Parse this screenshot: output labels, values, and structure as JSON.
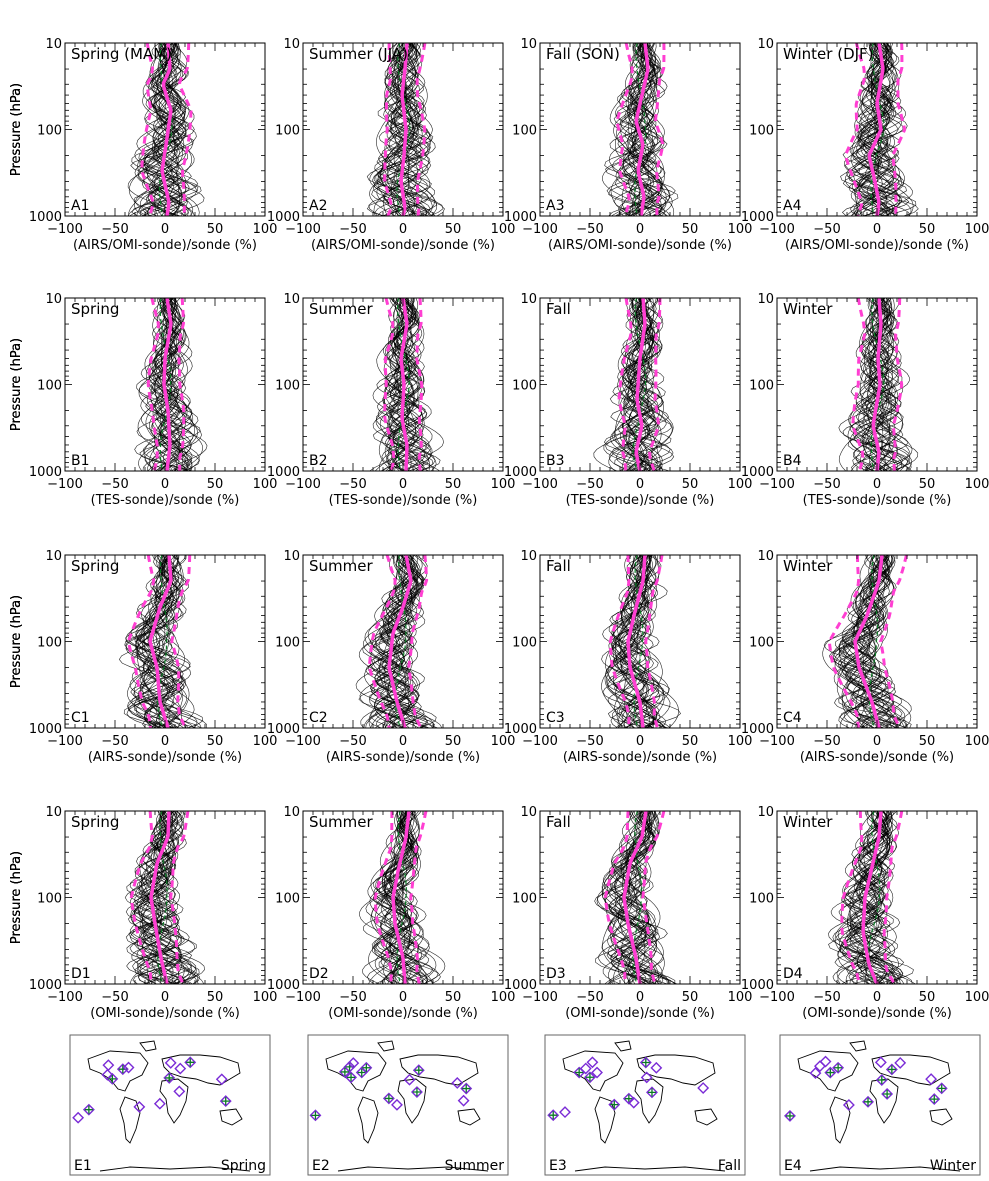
{
  "chart_data": {
    "type": "line",
    "ylabel": "Pressure (hPa)",
    "y_scale": "log",
    "y_reversed": true,
    "ylim": [
      1000,
      10
    ],
    "y_ticks": [
      "10",
      "100",
      "1000"
    ],
    "xlim": [
      -100,
      100
    ],
    "x_ticks": [
      "−100",
      "−50",
      "0",
      "50",
      "100"
    ],
    "line_colors": {
      "profiles": "#000000",
      "mean": "#ff3fd2",
      "stddev": "#ff3fd2",
      "reference": "#0a7a24"
    },
    "rows": [
      {
        "xlabel": "(AIRS/OMI-sonde)/sonde (%)",
        "panels": [
          {
            "label": "A1",
            "title": "Spring (MAM)",
            "mean": [
              [
                10,
                3
              ],
              [
                20,
                5
              ],
              [
                30,
                -2
              ],
              [
                60,
                6
              ],
              [
                150,
                1
              ],
              [
                300,
                -3
              ],
              [
                700,
                4
              ],
              [
                1000,
                2
              ]
            ],
            "spread": 22
          },
          {
            "label": "A2",
            "title": "Summer (JJA)",
            "mean": [
              [
                10,
                4
              ],
              [
                20,
                2
              ],
              [
                40,
                -1
              ],
              [
                100,
                3
              ],
              [
                200,
                1
              ],
              [
                400,
                -2
              ],
              [
                800,
                2
              ],
              [
                1000,
                0
              ]
            ],
            "spread": 19
          },
          {
            "label": "A3",
            "title": "Fall (SON)",
            "mean": [
              [
                10,
                5
              ],
              [
                20,
                8
              ],
              [
                40,
                2
              ],
              [
                80,
                -4
              ],
              [
                150,
                3
              ],
              [
                300,
                -2
              ],
              [
                600,
                4
              ],
              [
                1000,
                1
              ]
            ],
            "spread": 20
          },
          {
            "label": "A4",
            "title": "Winter (DJF)",
            "mean": [
              [
                10,
                2
              ],
              [
                20,
                6
              ],
              [
                50,
                0
              ],
              [
                100,
                4
              ],
              [
                200,
                -8
              ],
              [
                400,
                -2
              ],
              [
                700,
                2
              ],
              [
                1000,
                0
              ]
            ],
            "spread": 24
          }
        ]
      },
      {
        "xlabel": "(TES-sonde)/sonde (%)",
        "panels": [
          {
            "label": "B1",
            "title": "Spring",
            "mean": [
              [
                10,
                2
              ],
              [
                20,
                6
              ],
              [
                50,
                0
              ],
              [
                100,
                -1
              ],
              [
                200,
                3
              ],
              [
                500,
                5
              ],
              [
                1000,
                2
              ]
            ],
            "spread": 16
          },
          {
            "label": "B2",
            "title": "Summer",
            "mean": [
              [
                10,
                0
              ],
              [
                20,
                4
              ],
              [
                50,
                -2
              ],
              [
                100,
                1
              ],
              [
                250,
                -1
              ],
              [
                500,
                4
              ],
              [
                1000,
                3
              ]
            ],
            "spread": 18
          },
          {
            "label": "B3",
            "title": "Fall",
            "mean": [
              [
                10,
                3
              ],
              [
                20,
                5
              ],
              [
                50,
                0
              ],
              [
                150,
                -3
              ],
              [
                300,
                2
              ],
              [
                600,
                -4
              ],
              [
                1000,
                0
              ]
            ],
            "spread": 18
          },
          {
            "label": "B4",
            "title": "Winter",
            "mean": [
              [
                10,
                2
              ],
              [
                20,
                4
              ],
              [
                50,
                1
              ],
              [
                100,
                3
              ],
              [
                300,
                -4
              ],
              [
                600,
                2
              ],
              [
                1000,
                0
              ]
            ],
            "spread": 22
          }
        ]
      },
      {
        "xlabel": "(AIRS-sonde)/sonde (%)",
        "panels": [
          {
            "label": "C1",
            "title": "Spring",
            "mean": [
              [
                10,
                4
              ],
              [
                20,
                6
              ],
              [
                40,
                -5
              ],
              [
                100,
                -15
              ],
              [
                200,
                -8
              ],
              [
                500,
                -5
              ],
              [
                1000,
                3
              ]
            ],
            "spread": 22
          },
          {
            "label": "C2",
            "title": "Summer",
            "mean": [
              [
                10,
                3
              ],
              [
                20,
                8
              ],
              [
                40,
                0
              ],
              [
                80,
                -10
              ],
              [
                200,
                -14
              ],
              [
                500,
                -6
              ],
              [
                1000,
                2
              ]
            ],
            "spread": 20
          },
          {
            "label": "C3",
            "title": "Fall",
            "mean": [
              [
                10,
                5
              ],
              [
                20,
                3
              ],
              [
                50,
                -6
              ],
              [
                100,
                -12
              ],
              [
                200,
                -10
              ],
              [
                500,
                0
              ],
              [
                1000,
                3
              ]
            ],
            "spread": 18
          },
          {
            "label": "C4",
            "title": "Winter",
            "mean": [
              [
                10,
                5
              ],
              [
                20,
                2
              ],
              [
                50,
                -10
              ],
              [
                100,
                -22
              ],
              [
                200,
                -18
              ],
              [
                500,
                -5
              ],
              [
                1000,
                2
              ]
            ],
            "spread": 26
          }
        ]
      },
      {
        "xlabel": "(OMI-sonde)/sonde (%)",
        "panels": [
          {
            "label": "D1",
            "title": "Spring",
            "mean": [
              [
                10,
                4
              ],
              [
                20,
                3
              ],
              [
                40,
                -8
              ],
              [
                100,
                -14
              ],
              [
                200,
                -10
              ],
              [
                500,
                -4
              ],
              [
                1000,
                2
              ]
            ],
            "spread": 20
          },
          {
            "label": "D2",
            "title": "Summer",
            "mean": [
              [
                10,
                6
              ],
              [
                20,
                3
              ],
              [
                50,
                -5
              ],
              [
                100,
                -10
              ],
              [
                200,
                -8
              ],
              [
                500,
                0
              ],
              [
                1000,
                2
              ]
            ],
            "spread": 18
          },
          {
            "label": "D3",
            "title": "Fall",
            "mean": [
              [
                10,
                6
              ],
              [
                20,
                2
              ],
              [
                40,
                -10
              ],
              [
                100,
                -16
              ],
              [
                200,
                -12
              ],
              [
                500,
                -4
              ],
              [
                1000,
                0
              ]
            ],
            "spread": 19
          },
          {
            "label": "D4",
            "title": "Winter",
            "mean": [
              [
                10,
                4
              ],
              [
                20,
                2
              ],
              [
                50,
                -6
              ],
              [
                100,
                -12
              ],
              [
                250,
                -14
              ],
              [
                600,
                -8
              ],
              [
                1000,
                0
              ]
            ],
            "spread": 22
          }
        ]
      }
    ],
    "maps": [
      {
        "label": "E1",
        "title": "Spring"
      },
      {
        "label": "E2",
        "title": "Summer"
      },
      {
        "label": "E3",
        "title": "Fall"
      },
      {
        "label": "E4",
        "title": "Winter"
      }
    ]
  }
}
